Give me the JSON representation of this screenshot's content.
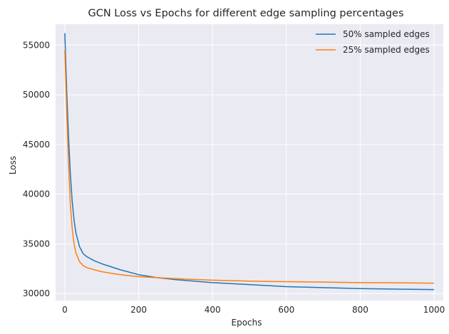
{
  "chart_data": {
    "type": "line",
    "title": "GCN Loss vs Epochs for different edge sampling percentages",
    "xlabel": "Epochs",
    "ylabel": "Loss",
    "xlim": [
      -25,
      1025
    ],
    "ylim": [
      29300,
      57100
    ],
    "x_ticks": [
      0,
      200,
      400,
      600,
      800,
      1000
    ],
    "x_tick_labels": [
      "0",
      "200",
      "400",
      "600",
      "800",
      "1000"
    ],
    "y_ticks": [
      30000,
      35000,
      40000,
      45000,
      50000,
      55000
    ],
    "y_tick_labels": [
      "30000",
      "35000",
      "40000",
      "45000",
      "50000",
      "55000"
    ],
    "grid": true,
    "legend_position": "top-right",
    "series": [
      {
        "name": "50% sampled edges",
        "color": "#1f77b4",
        "x": [
          0,
          5,
          10,
          15,
          20,
          25,
          30,
          40,
          50,
          60,
          80,
          100,
          150,
          200,
          250,
          300,
          400,
          500,
          600,
          700,
          800,
          900,
          1000
        ],
        "y": [
          56200,
          50500,
          45800,
          42000,
          39300,
          37400,
          36100,
          34700,
          34000,
          33700,
          33300,
          33000,
          32400,
          31900,
          31600,
          31400,
          31100,
          30900,
          30700,
          30600,
          30500,
          30450,
          30400
        ]
      },
      {
        "name": "25% sampled edges",
        "color": "#ff7f0e",
        "x": [
          0,
          5,
          10,
          15,
          20,
          25,
          30,
          40,
          50,
          60,
          80,
          100,
          150,
          200,
          250,
          300,
          400,
          500,
          600,
          700,
          800,
          900,
          1000
        ],
        "y": [
          54500,
          48500,
          43200,
          39000,
          36500,
          35000,
          34100,
          33200,
          32800,
          32600,
          32400,
          32200,
          31900,
          31700,
          31600,
          31500,
          31350,
          31250,
          31200,
          31150,
          31100,
          31080,
          31050
        ]
      }
    ]
  }
}
